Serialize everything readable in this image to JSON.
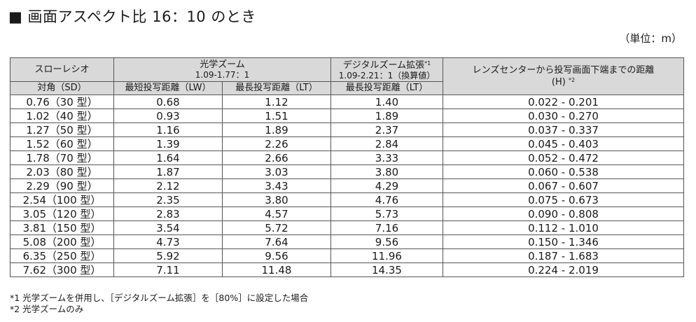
{
  "title": "■ 画面アスペクト比 16：10 のとき",
  "unit": "（単位：m）",
  "headers": {
    "throw_ratio": "スローレシオ",
    "optical_zoom": "光学ズーム",
    "optical_zoom_range": "1.09-1.77：1",
    "digital_zoom": "デジタルズーム拡張",
    "digital_zoom_mark": "*1",
    "digital_zoom_range": "1.09-2.21：1（換算値）",
    "height_dist": "レンズセンターから投写画面下端までの距離",
    "height_dist_unit": "(H)",
    "height_dist_mark": "*2",
    "diagonal": "対角（SD）",
    "min_lw": "最短投写距離（LW）",
    "max_lt": "最長投写距離（LT）",
    "max_lt_digital": "最長投写距離（LT）"
  },
  "rows": [
    {
      "diag": "0.76（30 型）",
      "lw": "0.68",
      "lt": "1.12",
      "dlt": "1.40",
      "h": "0.022 - 0.201"
    },
    {
      "diag": "1.02（40 型）",
      "lw": "0.93",
      "lt": "1.51",
      "dlt": "1.89",
      "h": "0.030 - 0.270"
    },
    {
      "diag": "1.27（50 型）",
      "lw": "1.16",
      "lt": "1.89",
      "dlt": "2.37",
      "h": "0.037 - 0.337"
    },
    {
      "diag": "1.52（60 型）",
      "lw": "1.39",
      "lt": "2.26",
      "dlt": "2.84",
      "h": "0.045 - 0.403"
    },
    {
      "diag": "1.78（70 型）",
      "lw": "1.64",
      "lt": "2.66",
      "dlt": "3.33",
      "h": "0.052 - 0.472"
    },
    {
      "diag": "2.03（80 型）",
      "lw": "1.87",
      "lt": "3.03",
      "dlt": "3.80",
      "h": "0.060 - 0.538"
    },
    {
      "diag": "2.29（90 型）",
      "lw": "2.12",
      "lt": "3.43",
      "dlt": "4.29",
      "h": "0.067 - 0.607"
    },
    {
      "diag": "2.54（100 型）",
      "lw": "2.35",
      "lt": "3.80",
      "dlt": "4.76",
      "h": "0.075 - 0.673"
    },
    {
      "diag": "3.05（120 型）",
      "lw": "2.83",
      "lt": "4.57",
      "dlt": "5.73",
      "h": "0.090 - 0.808"
    },
    {
      "diag": "3.81（150 型）",
      "lw": "3.54",
      "lt": "5.72",
      "dlt": "7.16",
      "h": "0.112 - 1.010"
    },
    {
      "diag": "5.08（200 型）",
      "lw": "4.73",
      "lt": "7.64",
      "dlt": "9.56",
      "h": "0.150 - 1.346"
    },
    {
      "diag": "6.35（250 型）",
      "lw": "5.92",
      "lt": "9.56",
      "dlt": "11.96",
      "h": "0.187 - 1.683"
    },
    {
      "diag": "7.62（300 型）",
      "lw": "7.11",
      "lt": "11.48",
      "dlt": "14.35",
      "h": "0.224 - 2.019"
    }
  ],
  "notes": [
    "*1  光学ズームを併用し、［デジタルズーム拡張］を［80%］に設定した場合",
    "*2  光学ズームのみ"
  ]
}
